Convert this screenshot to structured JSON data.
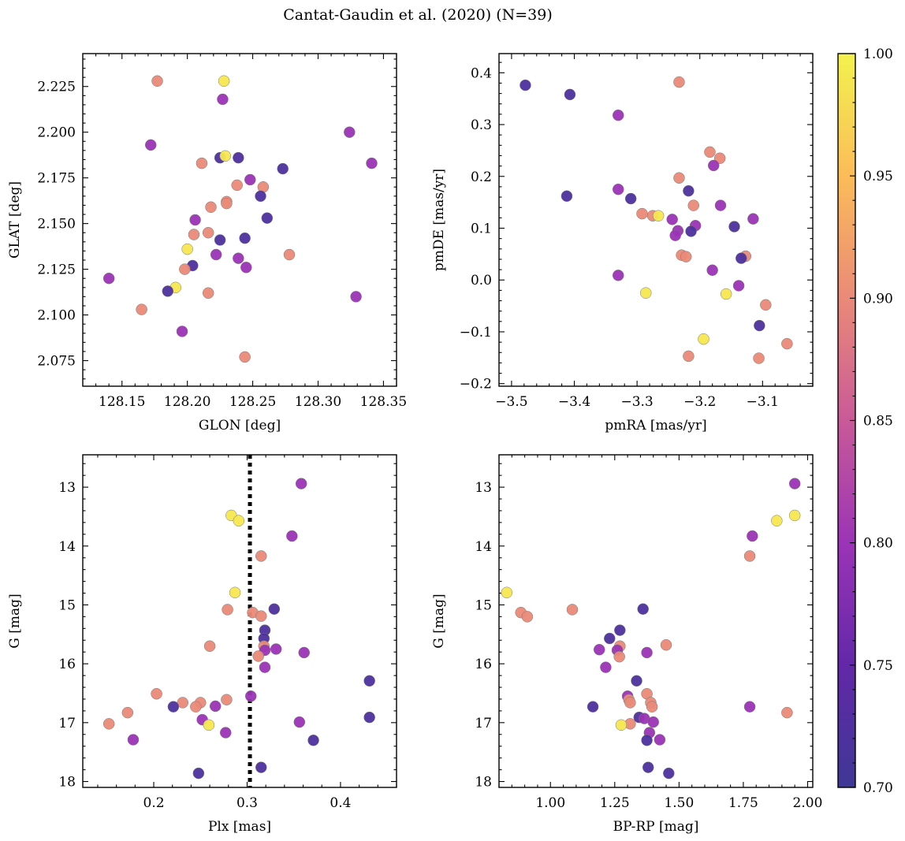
{
  "suptitle": "Cantat-Gaudin et al. (2020) (N=39)",
  "colorbar": {
    "range": [
      0.7,
      1.0
    ],
    "ticks": [
      "0.70",
      "0.75",
      "0.80",
      "0.85",
      "0.90",
      "0.95",
      "1.00"
    ],
    "tick_values": [
      0.7,
      0.75,
      0.8,
      0.85,
      0.9,
      0.95,
      1.0
    ],
    "colormap": "plasma (clipped)"
  },
  "chart_data": [
    {
      "type": "scatter",
      "xlabel": "GLON [deg]",
      "ylabel": "GLAT [deg]",
      "xlim": [
        128.12,
        128.36
      ],
      "ylim": [
        2.061,
        2.243
      ],
      "xticks": [
        128.15,
        128.2,
        128.25,
        128.3,
        128.35
      ],
      "xtick_labels": [
        "128.15",
        "128.20",
        "128.25",
        "128.30",
        "128.35"
      ],
      "yticks": [
        2.075,
        2.1,
        2.125,
        2.15,
        2.175,
        2.2,
        2.225
      ],
      "ytick_labels": [
        "2.075",
        "2.100",
        "2.125",
        "2.150",
        "2.175",
        "2.200",
        "2.225"
      ],
      "y_inverted": false,
      "points": [
        {
          "x": 128.177,
          "y": 2.228,
          "c": 0.9
        },
        {
          "x": 128.228,
          "y": 2.228,
          "c": 0.99
        },
        {
          "x": 128.227,
          "y": 2.218,
          "c": 0.8
        },
        {
          "x": 128.172,
          "y": 2.193,
          "c": 0.8
        },
        {
          "x": 128.324,
          "y": 2.2,
          "c": 0.8
        },
        {
          "x": 128.341,
          "y": 2.183,
          "c": 0.8
        },
        {
          "x": 128.225,
          "y": 2.186,
          "c": 0.72
        },
        {
          "x": 128.239,
          "y": 2.186,
          "c": 0.72
        },
        {
          "x": 128.229,
          "y": 2.187,
          "c": 0.99
        },
        {
          "x": 128.211,
          "y": 2.183,
          "c": 0.9
        },
        {
          "x": 128.273,
          "y": 2.18,
          "c": 0.72
        },
        {
          "x": 128.248,
          "y": 2.174,
          "c": 0.8
        },
        {
          "x": 128.238,
          "y": 2.171,
          "c": 0.9
        },
        {
          "x": 128.258,
          "y": 2.17,
          "c": 0.9
        },
        {
          "x": 128.256,
          "y": 2.165,
          "c": 0.72
        },
        {
          "x": 128.23,
          "y": 2.162,
          "c": 0.9
        },
        {
          "x": 128.23,
          "y": 2.161,
          "c": 0.9
        },
        {
          "x": 128.218,
          "y": 2.159,
          "c": 0.9
        },
        {
          "x": 128.261,
          "y": 2.153,
          "c": 0.72
        },
        {
          "x": 128.206,
          "y": 2.152,
          "c": 0.8
        },
        {
          "x": 128.216,
          "y": 2.145,
          "c": 0.9
        },
        {
          "x": 128.205,
          "y": 2.144,
          "c": 0.9
        },
        {
          "x": 128.244,
          "y": 2.142,
          "c": 0.72
        },
        {
          "x": 128.225,
          "y": 2.141,
          "c": 0.72
        },
        {
          "x": 128.2,
          "y": 2.136,
          "c": 0.99
        },
        {
          "x": 128.278,
          "y": 2.133,
          "c": 0.9
        },
        {
          "x": 128.222,
          "y": 2.133,
          "c": 0.8
        },
        {
          "x": 128.239,
          "y": 2.131,
          "c": 0.8
        },
        {
          "x": 128.204,
          "y": 2.127,
          "c": 0.72
        },
        {
          "x": 128.245,
          "y": 2.126,
          "c": 0.8
        },
        {
          "x": 128.198,
          "y": 2.125,
          "c": 0.9
        },
        {
          "x": 128.14,
          "y": 2.12,
          "c": 0.8
        },
        {
          "x": 128.191,
          "y": 2.115,
          "c": 0.99
        },
        {
          "x": 128.185,
          "y": 2.113,
          "c": 0.72
        },
        {
          "x": 128.216,
          "y": 2.112,
          "c": 0.9
        },
        {
          "x": 128.329,
          "y": 2.11,
          "c": 0.8
        },
        {
          "x": 128.165,
          "y": 2.103,
          "c": 0.9
        },
        {
          "x": 128.196,
          "y": 2.091,
          "c": 0.8
        },
        {
          "x": 128.244,
          "y": 2.077,
          "c": 0.9
        }
      ]
    },
    {
      "type": "scatter",
      "xlabel": "pmRA [mas/yr]",
      "ylabel": "pmDE [mas/yr]",
      "xlim": [
        -3.52,
        -3.02
      ],
      "ylim": [
        -0.205,
        0.437
      ],
      "xticks": [
        -3.5,
        -3.4,
        -3.3,
        -3.2,
        -3.1
      ],
      "xtick_labels": [
        "−3.5",
        "−3.4",
        "−3.3",
        "−3.2",
        "−3.1"
      ],
      "yticks": [
        -0.2,
        -0.1,
        0.0,
        0.1,
        0.2,
        0.3,
        0.4
      ],
      "ytick_labels": [
        "−0.2",
        "−0.1",
        "0.0",
        "0.1",
        "0.2",
        "0.3",
        "0.4"
      ],
      "y_inverted": false,
      "points": [
        {
          "x": -3.478,
          "y": 0.376,
          "c": 0.72
        },
        {
          "x": -3.407,
          "y": 0.358,
          "c": 0.72
        },
        {
          "x": -3.233,
          "y": 0.382,
          "c": 0.9
        },
        {
          "x": -3.33,
          "y": 0.318,
          "c": 0.8
        },
        {
          "x": -3.184,
          "y": 0.247,
          "c": 0.9
        },
        {
          "x": -3.168,
          "y": 0.235,
          "c": 0.9
        },
        {
          "x": -3.178,
          "y": 0.221,
          "c": 0.8
        },
        {
          "x": -3.233,
          "y": 0.197,
          "c": 0.9
        },
        {
          "x": -3.412,
          "y": 0.162,
          "c": 0.72
        },
        {
          "x": -3.33,
          "y": 0.175,
          "c": 0.8
        },
        {
          "x": -3.218,
          "y": 0.172,
          "c": 0.72
        },
        {
          "x": -3.31,
          "y": 0.157,
          "c": 0.72
        },
        {
          "x": -3.21,
          "y": 0.144,
          "c": 0.9
        },
        {
          "x": -3.167,
          "y": 0.144,
          "c": 0.8
        },
        {
          "x": -3.292,
          "y": 0.128,
          "c": 0.9
        },
        {
          "x": -3.275,
          "y": 0.124,
          "c": 0.9
        },
        {
          "x": -3.266,
          "y": 0.124,
          "c": 0.99
        },
        {
          "x": -3.244,
          "y": 0.117,
          "c": 0.8
        },
        {
          "x": -3.115,
          "y": 0.118,
          "c": 0.8
        },
        {
          "x": -3.207,
          "y": 0.105,
          "c": 0.8
        },
        {
          "x": -3.145,
          "y": 0.103,
          "c": 0.72
        },
        {
          "x": -3.235,
          "y": 0.095,
          "c": 0.8
        },
        {
          "x": -3.214,
          "y": 0.094,
          "c": 0.72
        },
        {
          "x": -3.239,
          "y": 0.086,
          "c": 0.8
        },
        {
          "x": -3.229,
          "y": 0.048,
          "c": 0.9
        },
        {
          "x": -3.222,
          "y": 0.045,
          "c": 0.9
        },
        {
          "x": -3.127,
          "y": 0.046,
          "c": 0.9
        },
        {
          "x": -3.134,
          "y": 0.042,
          "c": 0.72
        },
        {
          "x": -3.18,
          "y": 0.019,
          "c": 0.8
        },
        {
          "x": -3.33,
          "y": 0.009,
          "c": 0.8
        },
        {
          "x": -3.138,
          "y": -0.011,
          "c": 0.8
        },
        {
          "x": -3.286,
          "y": -0.025,
          "c": 0.99
        },
        {
          "x": -3.158,
          "y": -0.027,
          "c": 0.99
        },
        {
          "x": -3.095,
          "y": -0.048,
          "c": 0.9
        },
        {
          "x": -3.105,
          "y": -0.088,
          "c": 0.72
        },
        {
          "x": -3.194,
          "y": -0.114,
          "c": 0.99
        },
        {
          "x": -3.061,
          "y": -0.123,
          "c": 0.9
        },
        {
          "x": -3.218,
          "y": -0.147,
          "c": 0.9
        },
        {
          "x": -3.106,
          "y": -0.151,
          "c": 0.9
        }
      ]
    },
    {
      "type": "scatter",
      "xlabel": "Plx [mas]",
      "ylabel": "G [mag]",
      "xlim": [
        0.124,
        0.46
      ],
      "ylim": [
        18.1,
        12.45
      ],
      "xticks": [
        0.2,
        0.3,
        0.4
      ],
      "xtick_labels": [
        "0.2",
        "0.3",
        "0.4"
      ],
      "yticks": [
        13,
        14,
        15,
        16,
        17,
        18
      ],
      "ytick_labels": [
        "13",
        "14",
        "15",
        "16",
        "17",
        "18"
      ],
      "y_inverted": true,
      "vline": 0.303,
      "points": [
        {
          "x": 0.358,
          "y": 12.94,
          "c": 0.8
        },
        {
          "x": 0.283,
          "y": 13.48,
          "c": 0.99
        },
        {
          "x": 0.291,
          "y": 13.57,
          "c": 0.99
        },
        {
          "x": 0.348,
          "y": 13.83,
          "c": 0.8
        },
        {
          "x": 0.315,
          "y": 14.17,
          "c": 0.9
        },
        {
          "x": 0.287,
          "y": 14.79,
          "c": 0.99
        },
        {
          "x": 0.279,
          "y": 15.08,
          "c": 0.9
        },
        {
          "x": 0.329,
          "y": 15.07,
          "c": 0.72
        },
        {
          "x": 0.306,
          "y": 15.13,
          "c": 0.9
        },
        {
          "x": 0.315,
          "y": 15.19,
          "c": 0.9
        },
        {
          "x": 0.319,
          "y": 15.43,
          "c": 0.72
        },
        {
          "x": 0.318,
          "y": 15.57,
          "c": 0.72
        },
        {
          "x": 0.26,
          "y": 15.7,
          "c": 0.9
        },
        {
          "x": 0.318,
          "y": 15.7,
          "c": 0.9
        },
        {
          "x": 0.319,
          "y": 15.77,
          "c": 0.8
        },
        {
          "x": 0.331,
          "y": 15.75,
          "c": 0.8
        },
        {
          "x": 0.361,
          "y": 15.81,
          "c": 0.8
        },
        {
          "x": 0.312,
          "y": 15.87,
          "c": 0.9
        },
        {
          "x": 0.319,
          "y": 16.06,
          "c": 0.8
        },
        {
          "x": 0.431,
          "y": 16.29,
          "c": 0.72
        },
        {
          "x": 0.203,
          "y": 16.51,
          "c": 0.9
        },
        {
          "x": 0.304,
          "y": 16.55,
          "c": 0.8
        },
        {
          "x": 0.278,
          "y": 16.61,
          "c": 0.9
        },
        {
          "x": 0.231,
          "y": 16.66,
          "c": 0.9
        },
        {
          "x": 0.25,
          "y": 16.66,
          "c": 0.9
        },
        {
          "x": 0.221,
          "y": 16.73,
          "c": 0.72
        },
        {
          "x": 0.245,
          "y": 16.73,
          "c": 0.9
        },
        {
          "x": 0.266,
          "y": 16.72,
          "c": 0.8
        },
        {
          "x": 0.172,
          "y": 16.83,
          "c": 0.9
        },
        {
          "x": 0.431,
          "y": 16.91,
          "c": 0.72
        },
        {
          "x": 0.252,
          "y": 16.95,
          "c": 0.8
        },
        {
          "x": 0.356,
          "y": 16.99,
          "c": 0.8
        },
        {
          "x": 0.152,
          "y": 17.02,
          "c": 0.9
        },
        {
          "x": 0.259,
          "y": 17.04,
          "c": 0.99
        },
        {
          "x": 0.277,
          "y": 17.17,
          "c": 0.8
        },
        {
          "x": 0.178,
          "y": 17.29,
          "c": 0.8
        },
        {
          "x": 0.371,
          "y": 17.3,
          "c": 0.72
        },
        {
          "x": 0.315,
          "y": 17.76,
          "c": 0.72
        },
        {
          "x": 0.248,
          "y": 17.86,
          "c": 0.72
        }
      ]
    },
    {
      "type": "scatter",
      "xlabel": "BP-RP [mag]",
      "ylabel": "G [mag]",
      "xlim": [
        0.8,
        2.02
      ],
      "ylim": [
        18.1,
        12.45
      ],
      "xticks": [
        1.0,
        1.25,
        1.5,
        1.75,
        2.0
      ],
      "xtick_labels": [
        "1.00",
        "1.25",
        "1.50",
        "1.75",
        "2.00"
      ],
      "yticks": [
        13,
        14,
        15,
        16,
        17,
        18
      ],
      "ytick_labels": [
        "13",
        "14",
        "15",
        "16",
        "17",
        "18"
      ],
      "y_inverted": true,
      "points": [
        {
          "x": 1.95,
          "y": 12.94,
          "c": 0.8
        },
        {
          "x": 1.95,
          "y": 13.48,
          "c": 0.99
        },
        {
          "x": 1.88,
          "y": 13.57,
          "c": 0.99
        },
        {
          "x": 1.785,
          "y": 13.83,
          "c": 0.8
        },
        {
          "x": 1.775,
          "y": 14.17,
          "c": 0.9
        },
        {
          "x": 0.83,
          "y": 14.79,
          "c": 0.99
        },
        {
          "x": 0.885,
          "y": 15.13,
          "c": 0.9
        },
        {
          "x": 0.91,
          "y": 15.2,
          "c": 0.9
        },
        {
          "x": 1.085,
          "y": 15.08,
          "c": 0.9
        },
        {
          "x": 1.36,
          "y": 15.07,
          "c": 0.72
        },
        {
          "x": 1.27,
          "y": 15.43,
          "c": 0.72
        },
        {
          "x": 1.23,
          "y": 15.57,
          "c": 0.72
        },
        {
          "x": 1.27,
          "y": 15.7,
          "c": 0.9
        },
        {
          "x": 1.45,
          "y": 15.68,
          "c": 0.9
        },
        {
          "x": 1.26,
          "y": 15.77,
          "c": 0.8
        },
        {
          "x": 1.19,
          "y": 15.76,
          "c": 0.8
        },
        {
          "x": 1.375,
          "y": 15.81,
          "c": 0.8
        },
        {
          "x": 1.268,
          "y": 15.88,
          "c": 0.9
        },
        {
          "x": 1.215,
          "y": 16.06,
          "c": 0.8
        },
        {
          "x": 1.335,
          "y": 16.29,
          "c": 0.72
        },
        {
          "x": 1.375,
          "y": 16.51,
          "c": 0.9
        },
        {
          "x": 1.3,
          "y": 16.55,
          "c": 0.8
        },
        {
          "x": 1.305,
          "y": 16.61,
          "c": 0.9
        },
        {
          "x": 1.39,
          "y": 16.66,
          "c": 0.9
        },
        {
          "x": 1.31,
          "y": 16.66,
          "c": 0.9
        },
        {
          "x": 1.165,
          "y": 16.73,
          "c": 0.72
        },
        {
          "x": 1.395,
          "y": 16.73,
          "c": 0.9
        },
        {
          "x": 1.775,
          "y": 16.73,
          "c": 0.8
        },
        {
          "x": 1.92,
          "y": 16.83,
          "c": 0.9
        },
        {
          "x": 1.345,
          "y": 16.91,
          "c": 0.72
        },
        {
          "x": 1.365,
          "y": 16.93,
          "c": 0.8
        },
        {
          "x": 1.4,
          "y": 16.99,
          "c": 0.8
        },
        {
          "x": 1.31,
          "y": 17.02,
          "c": 0.9
        },
        {
          "x": 1.275,
          "y": 17.04,
          "c": 0.99
        },
        {
          "x": 1.385,
          "y": 17.17,
          "c": 0.8
        },
        {
          "x": 1.425,
          "y": 17.29,
          "c": 0.8
        },
        {
          "x": 1.375,
          "y": 17.3,
          "c": 0.72
        },
        {
          "x": 1.38,
          "y": 17.76,
          "c": 0.72
        },
        {
          "x": 1.46,
          "y": 17.86,
          "c": 0.72
        }
      ]
    }
  ]
}
